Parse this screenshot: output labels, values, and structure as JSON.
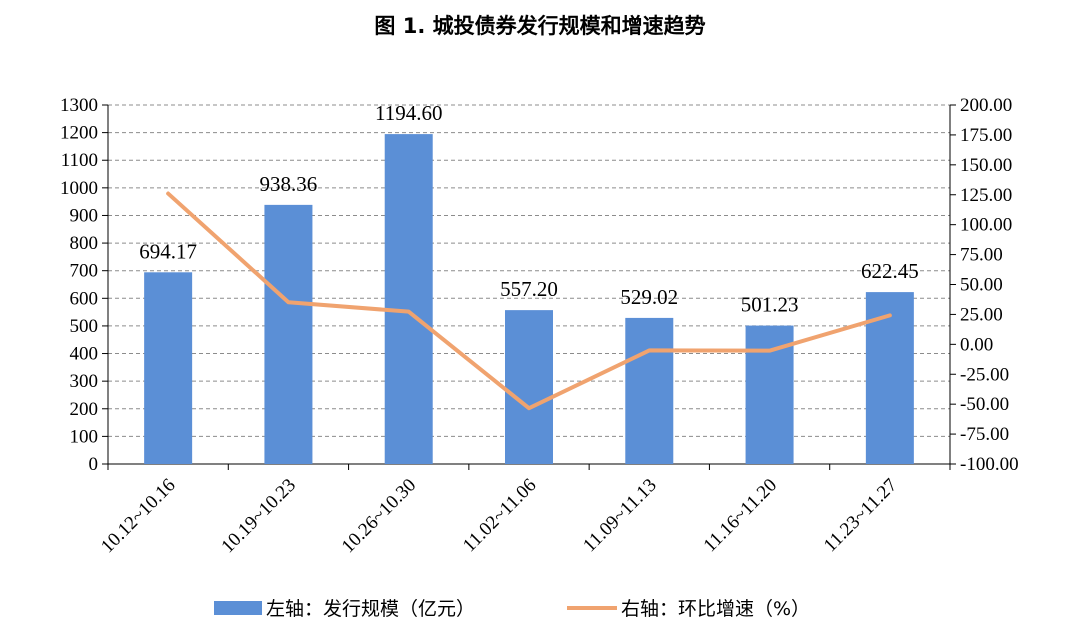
{
  "chart_data": {
    "type": "bar",
    "title": "图 1. 城投债券发行规模和增速趋势",
    "categories": [
      "10.12~10.16",
      "10.19~10.23",
      "10.26~10.30",
      "11.02~11.06",
      "11.09~11.13",
      "11.16~11.20",
      "11.23~11.27"
    ],
    "series": [
      {
        "name": "左轴：发行规模（亿元）",
        "type": "bar",
        "axis": "left",
        "color": "#5b8fd6",
        "values": [
          694.17,
          938.36,
          1194.6,
          557.2,
          529.02,
          501.23,
          622.45
        ],
        "labels": [
          "694.17",
          "938.36",
          "1194.60",
          "557.20",
          "529.02",
          "501.23",
          "622.45"
        ]
      },
      {
        "name": "右轴：环比增速（%）",
        "type": "line",
        "axis": "right",
        "color": "#f0a36f",
        "values": [
          126.0,
          35.2,
          27.3,
          -53.4,
          -5.1,
          -5.3,
          24.2
        ]
      }
    ],
    "y_left": {
      "ylim": [
        0,
        1300
      ],
      "ticks": [
        "0",
        "100",
        "200",
        "300",
        "400",
        "500",
        "600",
        "700",
        "800",
        "900",
        "1000",
        "1100",
        "1200",
        "1300"
      ]
    },
    "y_right": {
      "ylim": [
        -100,
        200
      ],
      "ticks": [
        "-100.00",
        "-75.00",
        "-50.00",
        "-25.00",
        "0.00",
        "25.00",
        "50.00",
        "75.00",
        "100.00",
        "125.00",
        "150.00",
        "175.00",
        "200.00"
      ]
    },
    "grid": true,
    "legend_position": "bottom"
  }
}
